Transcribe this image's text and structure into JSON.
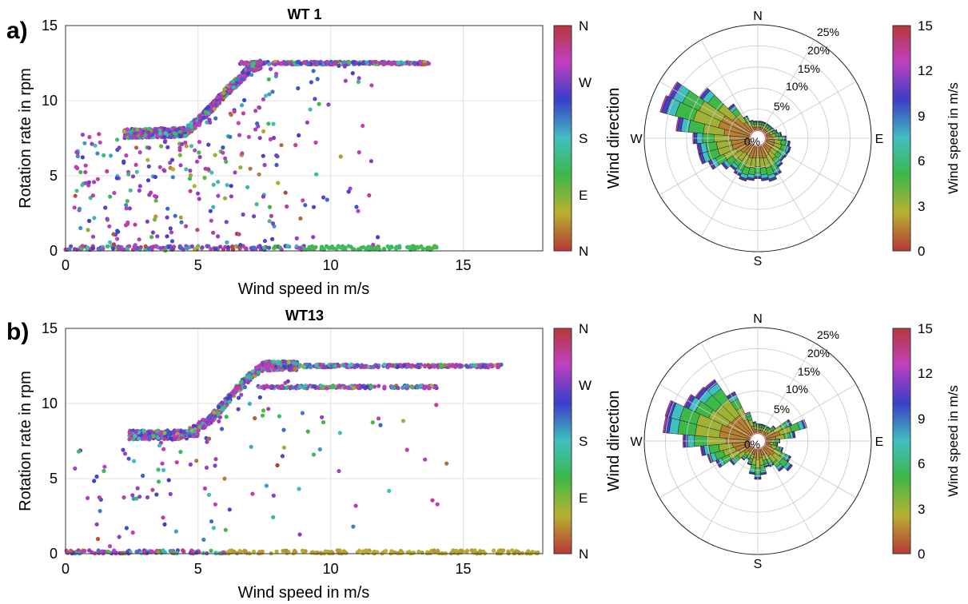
{
  "panels": [
    {
      "letter": "a)",
      "title": "WT 1",
      "scatter": {
        "xlabel": "Wind speed in m/s",
        "ylabel": "Rotation rate in rpm",
        "xlim": [
          0,
          18
        ],
        "ylim": [
          0,
          15
        ],
        "xticks": [
          "0",
          "5",
          "10",
          "15"
        ],
        "yticks": [
          "0",
          "5",
          "10",
          "15"
        ],
        "dir_colorbar_label": "Wind direction",
        "dir_ticks": [
          "N",
          "E",
          "S",
          "W",
          "N"
        ]
      },
      "rose": {
        "compass": [
          "N",
          "E",
          "S",
          "W"
        ],
        "ring_labels": [
          "0%",
          "5%",
          "10%",
          "15%",
          "20%",
          "25%"
        ],
        "colorbar_label": "Wind speed in m/s",
        "colorbar_ticks": [
          "0",
          "3",
          "6",
          "9",
          "12",
          "15"
        ]
      }
    },
    {
      "letter": "b)",
      "title": "WT13",
      "scatter": {
        "xlabel": "Wind speed in m/s",
        "ylabel": "Rotation rate in rpm",
        "xlim": [
          0,
          18
        ],
        "ylim": [
          0,
          15
        ],
        "xticks": [
          "0",
          "5",
          "10",
          "15"
        ],
        "yticks": [
          "0",
          "5",
          "10",
          "15"
        ],
        "dir_colorbar_label": "Wind direction",
        "dir_ticks": [
          "N",
          "E",
          "S",
          "W",
          "N"
        ]
      },
      "rose": {
        "compass": [
          "N",
          "E",
          "S",
          "W"
        ],
        "ring_labels": [
          "0%",
          "5%",
          "10%",
          "15%",
          "20%",
          "25%"
        ],
        "colorbar_label": "Wind speed in m/s",
        "colorbar_ticks": [
          "0",
          "3",
          "6",
          "9",
          "12",
          "15"
        ]
      }
    }
  ],
  "colors": {
    "direction_scale": [
      "#b83838",
      "#b8b030",
      "#3cb84a",
      "#40bfc0",
      "#3a3ec8",
      "#c040c0",
      "#b83838"
    ],
    "speed_scale": [
      "#b83838",
      "#b8b030",
      "#3cb84a",
      "#40bfc0",
      "#3a3ec8",
      "#c040c0",
      "#b83838"
    ]
  },
  "chart_data": [
    {
      "type": "scatter",
      "title": "WT 1",
      "xlabel": "Wind speed in m/s",
      "ylabel": "Rotation rate in rpm",
      "xlim": [
        0,
        18
      ],
      "ylim": [
        0,
        15
      ],
      "color_by": "Wind direction",
      "power_curve": {
        "x": [
          2.2,
          4.5,
          5.0,
          5.5,
          6.0,
          6.5,
          7.0,
          7.5,
          13.7
        ],
        "y": [
          7.8,
          7.9,
          8.6,
          9.5,
          10.5,
          11.3,
          12.2,
          12.5,
          12.5
        ]
      },
      "point_groups": [
        {
          "label": "rated plateau",
          "x_range": [
            6.5,
            13.7
          ],
          "y": 12.5
        },
        {
          "label": "low-speed band",
          "x_range": [
            2.2,
            4.5
          ],
          "y": 7.8
        },
        {
          "label": "idling",
          "x_range": [
            0,
            14
          ],
          "y": 0.2
        }
      ],
      "grid": true
    },
    {
      "type": "bar",
      "subtype": "wind rose",
      "title": "WT 1",
      "categories": [
        "N",
        "E",
        "S",
        "W"
      ],
      "dominant_direction_deg": 290,
      "max_frequency_percent": 23,
      "radial_ticks_percent": [
        0,
        5,
        10,
        15,
        20,
        25
      ],
      "colorbar": {
        "label": "Wind speed in m/s",
        "range": [
          0,
          15
        ]
      },
      "grid": true
    },
    {
      "type": "scatter",
      "title": "WT13",
      "xlabel": "Wind speed in m/s",
      "ylabel": "Rotation rate in rpm",
      "xlim": [
        0,
        18
      ],
      "ylim": [
        0,
        15
      ],
      "color_by": "Wind direction",
      "power_curve": {
        "x": [
          2.4,
          4.5,
          5.0,
          5.5,
          6.0,
          6.5,
          7.0,
          7.5,
          16.5
        ],
        "y": [
          7.9,
          7.9,
          8.4,
          9.0,
          10.0,
          11.0,
          11.9,
          12.5,
          12.5
        ]
      },
      "point_groups": [
        {
          "label": "rated plateau",
          "x_range": [
            7.5,
            16.5
          ],
          "y": 12.5
        },
        {
          "label": "reduced plateau",
          "x_range": [
            7.2,
            14.0
          ],
          "y": 11.1
        },
        {
          "label": "low-speed band",
          "x_range": [
            2.4,
            5.0
          ],
          "y": 7.9
        },
        {
          "label": "idling",
          "x_range": [
            0,
            18
          ],
          "y": 0.1
        }
      ],
      "grid": true
    },
    {
      "type": "bar",
      "subtype": "wind rose",
      "title": "WT13",
      "categories": [
        "N",
        "E",
        "S",
        "W"
      ],
      "dominant_direction_deg": 290,
      "max_frequency_percent": 22,
      "radial_ticks_percent": [
        0,
        5,
        10,
        15,
        20,
        25
      ],
      "colorbar": {
        "label": "Wind speed in m/s",
        "range": [
          0,
          15
        ]
      },
      "grid": true
    }
  ]
}
